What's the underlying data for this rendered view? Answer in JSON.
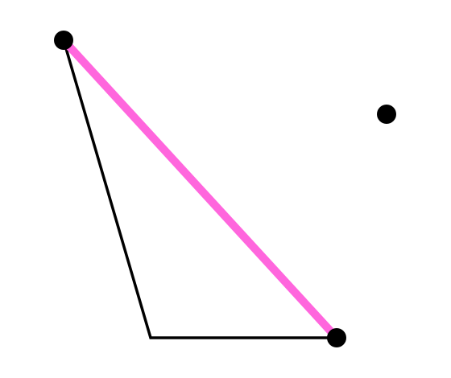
{
  "diagram": {
    "colors": {
      "background": "#ffffff",
      "edge": "#000000",
      "highlight": "#ff66dd",
      "point": "#000000"
    }
  }
}
